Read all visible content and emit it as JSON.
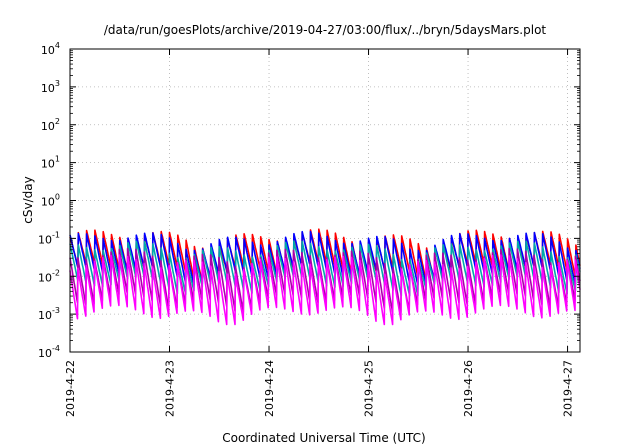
{
  "chart_data": {
    "type": "line",
    "title": "/data/run/goesPlots/archive/2019-04-27/03:00/flux/../bryn/5daysMars.plot",
    "xlabel": "Coordinated Universal Time (UTC)",
    "ylabel": "cSv/day",
    "yscale": "log",
    "ylim": [
      0.0001,
      10000
    ],
    "y_tick_exponents": [
      "-4",
      "-3",
      "-2",
      "-1",
      "0",
      "1",
      "2",
      "3",
      "4"
    ],
    "y_tick_base": "10",
    "xlim": [
      "2019-04-22T00:00",
      "2019-04-27T03:00"
    ],
    "x_ticks": [
      "2019-4-22",
      "2019-4-23",
      "2019-4-24",
      "2019-4-25",
      "2019-4-26",
      "2019-4-27"
    ],
    "grid": true,
    "sawtooth_period_hours": 2,
    "series": [
      {
        "color": "#ff0000",
        "peak": 0.11,
        "trough": 0.013
      },
      {
        "color": "#0000ff",
        "peak": 0.1,
        "trough": 0.011
      },
      {
        "color": "#00aaaa",
        "peak": 0.06,
        "trough": 0.006
      },
      {
        "color": "#aa00aa",
        "peak": 0.035,
        "trough": 0.002
      },
      {
        "color": "#ff00ff",
        "peak": 0.025,
        "trough": 0.001
      }
    ]
  }
}
